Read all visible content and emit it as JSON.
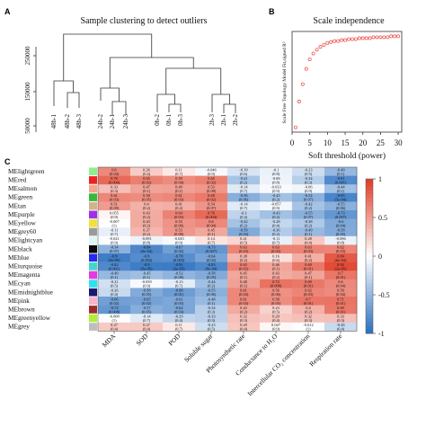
{
  "panels": {
    "a_label": "A",
    "b_label": "B",
    "c_label": "C"
  },
  "dendrogram": {
    "title": "Sample clustering  to detect outliers",
    "y_ticks": [
      "50000",
      "150000",
      "250000"
    ],
    "leaves": [
      "48h-1",
      "48h-2",
      "48h-3",
      "24h-2",
      "24h-1",
      "24h-3",
      "0h-2",
      "0h-1",
      "0h-3",
      "2h-3",
      "2h-1",
      "2h-2"
    ]
  },
  "chart_data": [
    {
      "type": "scatter",
      "panel": "B",
      "title": "Scale independence",
      "xlabel": "Soft threshold (power)",
      "ylabel": "Scale Free Topology Model Fit,signed R²",
      "x_ticks": [
        0,
        5,
        10,
        15,
        20,
        25,
        30
      ],
      "xlim": [
        0,
        31
      ],
      "ylim": [
        -0.1,
        0.95
      ],
      "marker_color": "#e8433a",
      "x": [
        1,
        2,
        3,
        4,
        5,
        6,
        7,
        8,
        9,
        10,
        11,
        12,
        13,
        14,
        15,
        16,
        17,
        18,
        19,
        20,
        21,
        22,
        23,
        24,
        25,
        26,
        27,
        28,
        29,
        30
      ],
      "y": [
        -0.05,
        0.22,
        0.4,
        0.56,
        0.66,
        0.72,
        0.76,
        0.79,
        0.81,
        0.83,
        0.84,
        0.85,
        0.85,
        0.86,
        0.86,
        0.87,
        0.87,
        0.87,
        0.88,
        0.88,
        0.88,
        0.88,
        0.89,
        0.89,
        0.89,
        0.89,
        0.89,
        0.9,
        0.9,
        0.9
      ]
    },
    {
      "type": "heatmap",
      "panel": "C",
      "columns": [
        "MDA",
        "SOD",
        "POD",
        "Soluble sugar",
        "Photosynthetic rate",
        "Conductance to H₂O",
        "Intercellular CO₂ concentration",
        "Respiration rate"
      ],
      "rows": [
        {
          "name": "MElightgreen",
          "color": "#8fee8f",
          "values": [
            0.6,
            0.26,
            0.11,
            -0.046,
            -0.19,
            -0.1,
            -0.23,
            -0.49
          ],
          "p": [
            "(0.04)",
            "(0.4)",
            "(0.7)",
            "(0.9)",
            "(0.6)",
            "(0.8)",
            "(0.5)",
            "(0.1)"
          ]
        },
        {
          "name": "MEred",
          "color": "#ee2020",
          "values": [
            0.76,
            0.65,
            0.59,
            0.65,
            -0.41,
            -0.08,
            -0.34,
            -0.81
          ],
          "p": [
            "(0.004)",
            "(0.02)",
            "(0.04)",
            "(0.02)",
            "(0.2)",
            "(0.8)",
            "(0.3)",
            "(0.001)"
          ]
        },
        {
          "name": "MEsalmon",
          "color": "#f6a48e",
          "values": [
            0.33,
            0.47,
            0.49,
            0.53,
            -0.14,
            -0.033,
            -0.06,
            -0.44
          ],
          "p": [
            "(0.3)",
            "(0.1)",
            "(0.1)",
            "(0.08)",
            "(0.7)",
            "(0.9)",
            "(0.9)",
            "(0.1)"
          ]
        },
        {
          "name": "MEgreen",
          "color": "#38b838",
          "values": [
            0.61,
            0.58,
            0.61,
            0.68,
            -0.56,
            -0.43,
            -0.54,
            -0.85
          ],
          "p": [
            "(0.03)",
            "(0.05)",
            "(0.03)",
            "(0.02)",
            "(0.06)",
            "(0.2)",
            "(0.07)",
            "(5e-04)"
          ]
        },
        {
          "name": "MEtan",
          "color": "#d2b48c",
          "values": [
            0.51,
            0.4,
            0.41,
            0.54,
            -0.14,
            -0.057,
            -0.42,
            -0.55
          ],
          "p": [
            "(0.09)",
            "(0.2)",
            "(0.2)",
            "(0.07)",
            "(0.7)",
            "(0.9)",
            "(0.2)",
            "(0.06)"
          ]
        },
        {
          "name": "MEpurple",
          "color": "#a030e8",
          "values": [
            0.055,
            0.43,
            0.64,
            0.76,
            -0.3,
            -0.43,
            -0.55,
            -0.73
          ],
          "p": [
            "(0.9)",
            "(0.2)",
            "(0.03)",
            "(0.004)",
            "(0.4)",
            "(0.2)",
            "(0.07)",
            "(0.007)"
          ]
        },
        {
          "name": "MEyellow",
          "color": "#f2e238",
          "values": [
            -0.007,
            0.43,
            0.55,
            0.6,
            -0.42,
            -0.28,
            -0.38,
            -0.6
          ],
          "p": [
            "(1)",
            "(0.2)",
            "(0.06)",
            "(0.04)",
            "(0.2)",
            "(0.4)",
            "(0.2)",
            "(0.04)"
          ]
        },
        {
          "name": "MEgrey60",
          "color": "#9a9a9a",
          "values": [
            -0.11,
            0.37,
            0.53,
            0.45,
            -0.59,
            -0.36,
            -0.49,
            -0.58
          ],
          "p": [
            "(0.7)",
            "(0.2)",
            "(0.08)",
            "(0.1)",
            "(0.04)",
            "(0.2)",
            "(0.1)",
            "(0.05)"
          ]
        },
        {
          "name": "MElightcyan",
          "color": "#dff6f6",
          "values": [
            -0.021,
            -0.091,
            -0.045,
            0.14,
            0.21,
            -0.11,
            0.28,
            -0.096
          ],
          "p": [
            "(0.9)",
            "(0.8)",
            "(0.9)",
            "(0.7)",
            "(0.5)",
            "(0.7)",
            "(0.4)",
            "(0.8)"
          ]
        },
        {
          "name": "MEblack",
          "color": "#0a0a0a",
          "values": [
            -0.54,
            -0.84,
            -0.67,
            -0.73,
            0.63,
            0.63,
            0.63,
            0.62
          ],
          "p": [
            "(0.07)",
            "(6e-04)",
            "(0.02)",
            "(0.007)",
            "(0.03)",
            "(0.03)",
            "(0.03)",
            "(0.03)"
          ]
        },
        {
          "name": "MEblue",
          "color": "#2828ee",
          "values": [
            -0.9,
            -0.8,
            -0.78,
            -0.64,
            0.38,
            0.16,
            0.41,
            0.84
          ],
          "p": [
            "(5e-05)",
            "(0.002)",
            "(0.003)",
            "(0.02)",
            "(0.2)",
            "(0.6)",
            "(0.2)",
            "(6e-04)"
          ]
        },
        {
          "name": "MEturquoise",
          "color": "#40d8c8",
          "values": [
            -0.82,
            -0.9,
            -0.91,
            -0.83,
            0.65,
            0.46,
            0.69,
            0.92
          ],
          "p": [
            "(0.001)",
            "(5e-05)",
            "(3e-05)",
            "(8e-04)",
            "(0.02)",
            "(0.1)",
            "(0.01)",
            "(2e-05)"
          ]
        },
        {
          "name": "MEmagenta",
          "color": "#e838e8",
          "values": [
            -0.49,
            -0.45,
            -0.52,
            -0.58,
            0.45,
            0.43,
            0.47,
            0.7
          ],
          "p": [
            "(0.1)",
            "(0.1)",
            "(0.08)",
            "(0.05)",
            "(0.1)",
            "(0.2)",
            "(0.1)",
            "(0.01)"
          ]
        },
        {
          "name": "MEcyan",
          "color": "#30e0f0",
          "values": [
            -0.21,
            -0.039,
            -0.13,
            -0.44,
            0.48,
            0.72,
            0.69,
            0.6
          ],
          "p": [
            "(0.5)",
            "(0.9)",
            "(0.7)",
            "(0.2)",
            "(0.1)",
            "(0.008)",
            "(0.01)",
            "(0.04)"
          ]
        },
        {
          "name": "MEmidnightblue",
          "color": "#1a1a70",
          "values": [
            -0.26,
            -0.58,
            -0.68,
            -0.55,
            0.61,
            0.56,
            0.62,
            0.59
          ],
          "p": [
            "(0.4)",
            "(0.05)",
            "(0.01)",
            "(0.06)",
            "(0.04)",
            "(0.06)",
            "(0.03)",
            "(0.04)"
          ]
        },
        {
          "name": "MEpink",
          "color": "#f6b6c8",
          "values": [
            -0.66,
            -0.65,
            -0.61,
            -0.48,
            0.61,
            0.58,
            0.7,
            0.71
          ],
          "p": [
            "(0.02)",
            "(0.02)",
            "(0.03)",
            "(0.1)",
            "(0.04)",
            "(0.05)",
            "(0.01)",
            "(0.01)"
          ]
        },
        {
          "name": "MEbrown",
          "color": "#9a2c2c",
          "values": [
            -0.72,
            -0.57,
            -0.62,
            -0.34,
            0.43,
            0.23,
            0.4,
            0.69
          ],
          "p": [
            "(0.008)",
            "(0.05)",
            "(0.03)",
            "(0.3)",
            "(0.2)",
            "(0.5)",
            "(0.2)",
            "(0.01)"
          ]
        },
        {
          "name": "MEgreenyellow",
          "color": "#b0ee38",
          "values": [
            -0.008,
            -0.14,
            -0.29,
            -0.33,
            0.32,
            0.29,
            0.32,
            0.33
          ],
          "p": [
            "(1)",
            "(0.7)",
            "(0.4)",
            "(0.3)",
            "(0.3)",
            "(0.4)",
            "(0.3)",
            "(0.3)"
          ]
        },
        {
          "name": "MEgrey",
          "color": "#bebebe",
          "values": [
            0.27,
            0.27,
            0.11,
            -0.23,
            0.29,
            0.047,
            -0.012,
            -0.26
          ],
          "p": [
            "(0.4)",
            "(0.4)",
            "(0.7)",
            "(0.5)",
            "(0.4)",
            "(0.9)",
            "(1)",
            "(0.4)"
          ]
        }
      ],
      "colorbar": {
        "ticks": [
          "1",
          "0.5",
          "0",
          "-0.5",
          "-1"
        ],
        "range": [
          -1,
          1
        ],
        "low_color": "#2a6fbf",
        "mid_color": "#ffffff",
        "high_color": "#e03b24"
      }
    }
  ]
}
